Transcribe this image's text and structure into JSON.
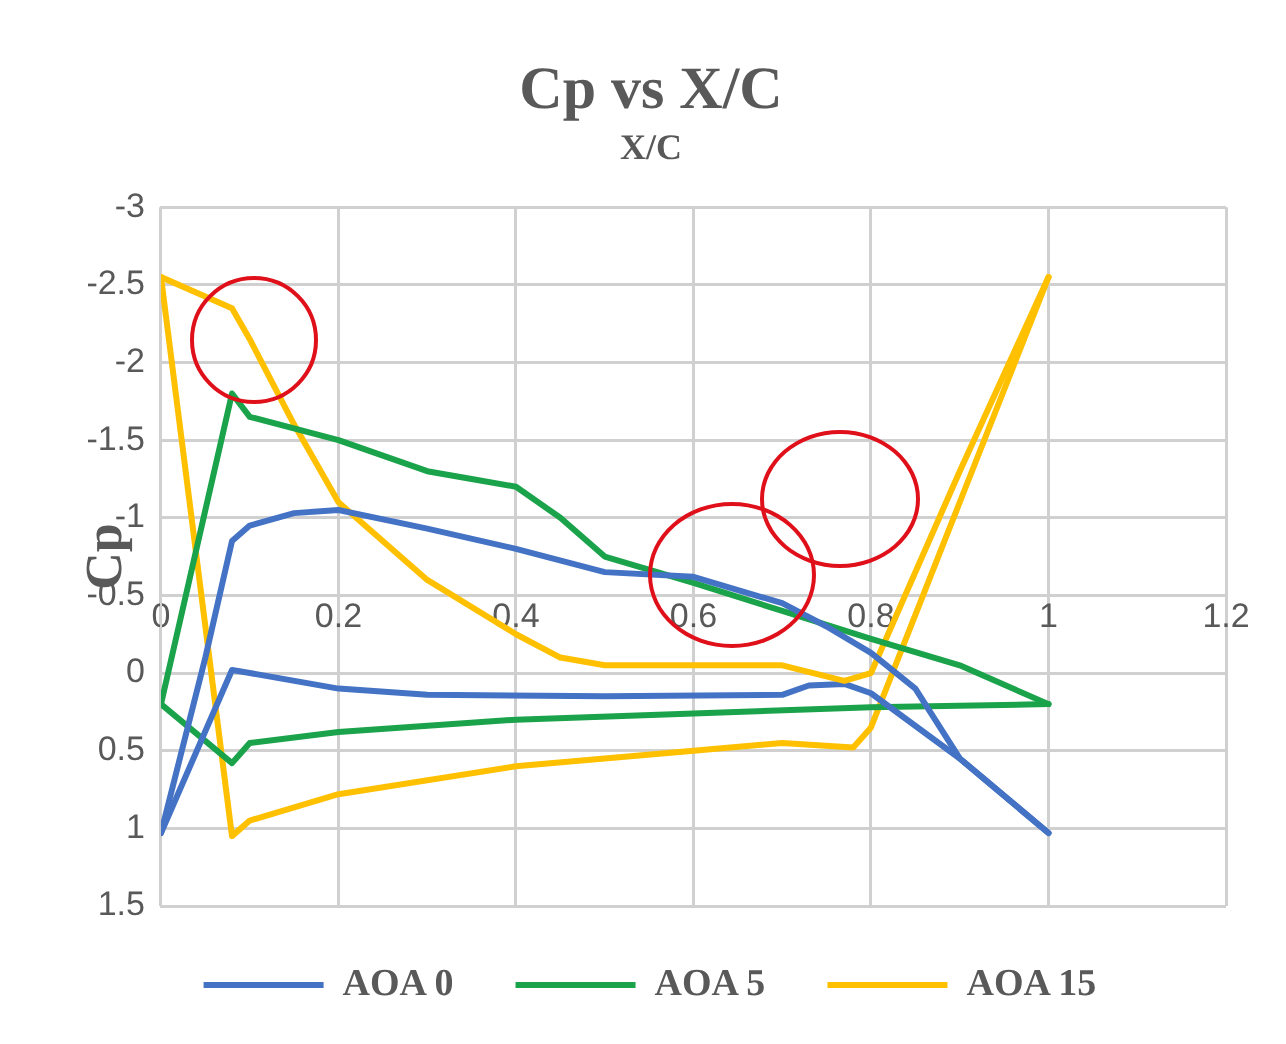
{
  "chart_data": {
    "type": "line",
    "title": "Cp vs X/C",
    "xlabel": "X/C",
    "ylabel": "Cp",
    "xlim": [
      0,
      1.2
    ],
    "xticks": [
      0,
      0.2,
      0.4,
      0.6,
      0.8,
      1,
      1.2
    ],
    "ylim": [
      1.5,
      -3
    ],
    "yticks": [
      -3,
      -2.5,
      -2,
      -1.5,
      -1,
      -0.5,
      0,
      0.5,
      1,
      1.5
    ],
    "grid": true,
    "legend": "bottom",
    "marker": "none",
    "line_style": "solid",
    "series": [
      {
        "name": "AOA 0",
        "color": "#4472c4",
        "x": [
          0,
          0.05,
          0.08,
          0.1,
          0.15,
          0.2,
          0.3,
          0.4,
          0.5,
          0.6,
          0.7,
          0.75,
          0.8,
          0.85,
          0.9,
          1
        ],
        "values": [
          1.03,
          -0.1,
          -0.85,
          -0.95,
          -1.03,
          -1.05,
          -0.93,
          -0.8,
          -0.65,
          -0.62,
          -0.45,
          -0.3,
          -0.13,
          0.1,
          0.55,
          1.03
        ]
      },
      {
        "name": "AOA 5",
        "color": "#1aa34a",
        "x": [
          0,
          0.08,
          0.1,
          0.2,
          0.3,
          0.35,
          0.4,
          0.45,
          0.5,
          0.6,
          0.7,
          0.8,
          0.9,
          1
        ],
        "values": [
          0.2,
          -1.8,
          -1.65,
          -1.5,
          -1.3,
          -1.25,
          -1.2,
          -1,
          -0.75,
          -0.58,
          -0.4,
          -0.22,
          -0.05,
          0.2
        ]
      },
      {
        "name": "AOA 15",
        "color": "#ffc000",
        "x": [
          0,
          0.08,
          0.1,
          0.15,
          0.2,
          0.3,
          0.4,
          0.45,
          0.5,
          0.6,
          0.7,
          0.77,
          0.8,
          0.9,
          1
        ],
        "values": [
          -2.55,
          -2.35,
          -2.15,
          -1.6,
          -1.1,
          -0.6,
          -0.25,
          -0.1,
          -0.05,
          -0.05,
          -0.05,
          0.05,
          0,
          -1.3,
          -2.55
        ]
      },
      {
        "color": "#4472c4",
        "x": [
          0,
          0.08,
          0.1,
          0.2,
          0.3,
          0.5,
          0.7,
          0.73,
          0.77,
          0.8,
          0.9,
          1
        ],
        "values": [
          1.03,
          -0.02,
          0,
          0.1,
          0.14,
          0.15,
          0.14,
          0.08,
          0.07,
          0.13,
          0.55,
          1.03
        ]
      },
      {
        "color": "#1aa34a",
        "x": [
          0,
          0.08,
          0.1,
          0.2,
          0.4,
          0.6,
          0.8,
          1
        ],
        "values": [
          0.2,
          0.58,
          0.45,
          0.38,
          0.3,
          0.26,
          0.22,
          0.2
        ]
      },
      {
        "color": "#ffc000",
        "x": [
          0,
          0.08,
          0.1,
          0.2,
          0.4,
          0.5,
          0.6,
          0.7,
          0.78,
          0.8,
          0.9,
          1
        ],
        "values": [
          -2.55,
          1.05,
          0.95,
          0.78,
          0.6,
          0.55,
          0.5,
          0.45,
          0.48,
          0.35,
          -1.1,
          -2.55
        ]
      }
    ]
  }
}
